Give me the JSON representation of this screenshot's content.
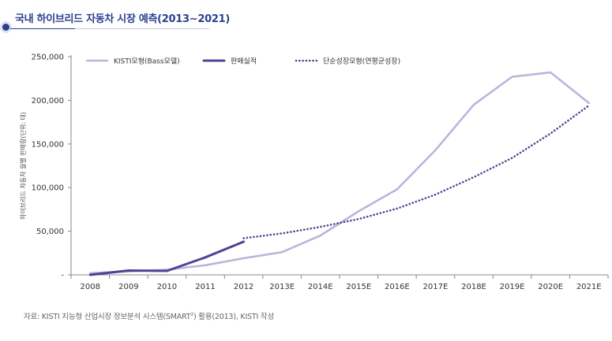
{
  "header": {
    "title": "국내 하이브리드 자동차 시장 예측(2013∼2021)"
  },
  "source": {
    "prefix": "자료: KISTI 지능형 산업시장 정보분석 시스템(SMART",
    "sup": "2",
    "suffix": ") 활용(2013), KISTI 작성"
  },
  "chart_data": {
    "type": "line",
    "title": "",
    "xlabel": "",
    "ylabel": "하이브리드 자동차 월별 판매량(단위: 대)",
    "categories": [
      "2008",
      "2009",
      "2010",
      "2011",
      "2012",
      "2013E",
      "2014E",
      "2015E",
      "2016E",
      "2017E",
      "2018E",
      "2019E",
      "2020E",
      "2021E"
    ],
    "ylim": [
      0,
      250000
    ],
    "yticks": [
      0,
      50000,
      100000,
      150000,
      200000,
      250000
    ],
    "ytick_labels": [
      "-",
      "50,000",
      "100,000",
      "150,000",
      "200,000",
      "250,000"
    ],
    "legend_position": "top",
    "series": [
      {
        "name": "KISTI모형(Bass모델)",
        "style": "solid",
        "color": "#b9b6db",
        "values": [
          2000,
          4000,
          6000,
          11000,
          19000,
          26000,
          45000,
          73000,
          98000,
          143000,
          195000,
          227000,
          232000,
          197000
        ]
      },
      {
        "name": "판매실적",
        "style": "solid",
        "color": "#4f4494",
        "values": [
          0,
          5000,
          4500,
          20000,
          38000,
          null,
          null,
          null,
          null,
          null,
          null,
          null,
          null,
          null
        ]
      },
      {
        "name": "단순성장모형(연평균성장)",
        "style": "dotted",
        "color": "#4f4494",
        "values": [
          null,
          null,
          null,
          null,
          42000,
          47500,
          55000,
          64000,
          76000,
          92000,
          112000,
          134000,
          162000,
          194000
        ]
      }
    ]
  }
}
